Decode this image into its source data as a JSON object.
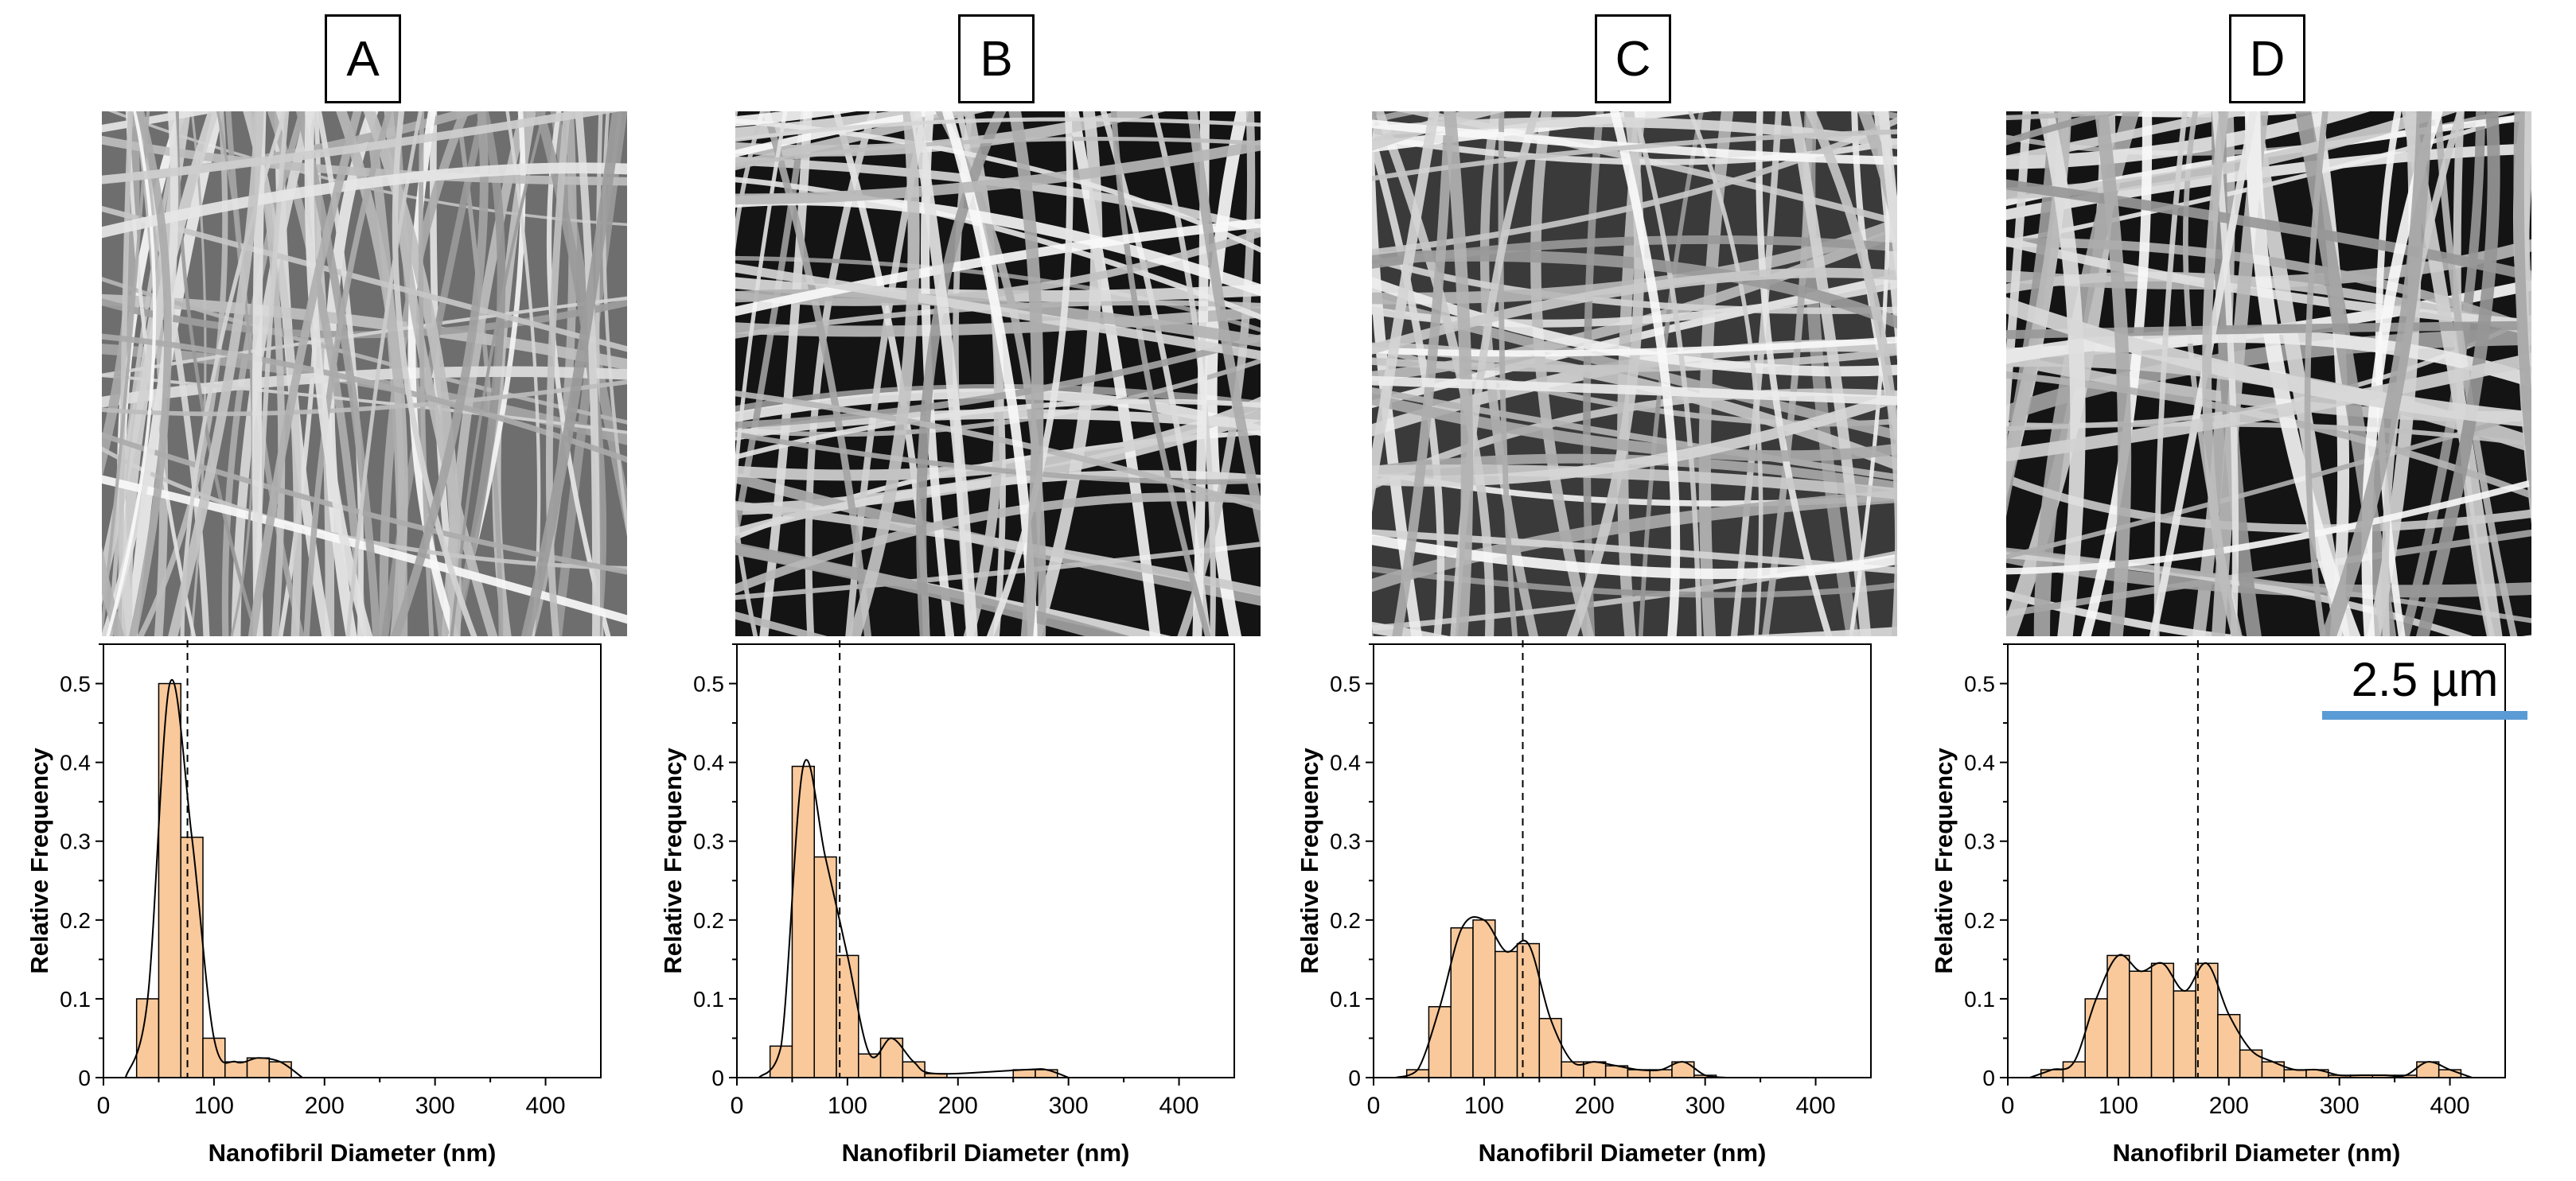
{
  "colors": {
    "bar_fill": "#f9c99b",
    "bar_stroke": "#000000",
    "curve": "#000000",
    "scale_bar": "#5b9bd5"
  },
  "scale_bar": {
    "label": "2.5 µm"
  },
  "chart_data": [
    {
      "type": "bar",
      "panel_label": "A",
      "xlabel": "Nanofibril Diameter (nm)",
      "ylabel": "Relative Frequency",
      "xlim": [
        0,
        450
      ],
      "ylim": [
        0,
        0.55
      ],
      "xticks": [
        0,
        100,
        200,
        300,
        400
      ],
      "yticks": [
        0,
        0.1,
        0.2,
        0.3,
        0.4,
        0.5
      ],
      "ytick_labels": [
        "0",
        "0.1",
        "0.2",
        "0.3",
        "0.4",
        "0.5"
      ],
      "bin_width": 20,
      "bin_centers": [
        40,
        60,
        80,
        100,
        120,
        140,
        160
      ],
      "values": [
        0.1,
        0.5,
        0.305,
        0.05,
        0.02,
        0.025,
        0.02
      ],
      "mean_line": 76,
      "fit_curve": true
    },
    {
      "type": "bar",
      "panel_label": "B",
      "xlabel": "Nanofibril Diameter (nm)",
      "ylabel": "Relative Frequency",
      "xlim": [
        0,
        450
      ],
      "ylim": [
        0,
        0.55
      ],
      "xticks": [
        0,
        100,
        200,
        300,
        400
      ],
      "yticks": [
        0,
        0.1,
        0.2,
        0.3,
        0.4,
        0.5
      ],
      "ytick_labels": [
        "0",
        "0.1",
        "0.2",
        "0.3",
        "0.4",
        "0.5"
      ],
      "bin_width": 20,
      "bin_centers": [
        40,
        60,
        80,
        100,
        120,
        140,
        160,
        180,
        260,
        280
      ],
      "values": [
        0.04,
        0.395,
        0.28,
        0.155,
        0.03,
        0.05,
        0.02,
        0.005,
        0.01,
        0.01
      ],
      "mean_line": 93,
      "fit_curve": true
    },
    {
      "type": "bar",
      "panel_label": "C",
      "xlabel": "Nanofibril Diameter (nm)",
      "ylabel": "Relative Frequency",
      "xlim": [
        0,
        450
      ],
      "ylim": [
        0,
        0.55
      ],
      "xticks": [
        0,
        100,
        200,
        300,
        400
      ],
      "yticks": [
        0,
        0.1,
        0.2,
        0.3,
        0.4,
        0.5
      ],
      "ytick_labels": [
        "0",
        "0.1",
        "0.2",
        "0.3",
        "0.4",
        "0.5"
      ],
      "bin_width": 20,
      "bin_centers": [
        40,
        60,
        80,
        100,
        120,
        140,
        160,
        180,
        200,
        220,
        240,
        260,
        280,
        300
      ],
      "values": [
        0.01,
        0.09,
        0.19,
        0.2,
        0.16,
        0.17,
        0.075,
        0.02,
        0.02,
        0.015,
        0.01,
        0.01,
        0.02,
        0.003
      ],
      "mean_line": 135,
      "fit_curve": true
    },
    {
      "type": "bar",
      "panel_label": "D",
      "xlabel": "Nanofibril Diameter (nm)",
      "ylabel": "Relative Frequency",
      "xlim": [
        0,
        450
      ],
      "ylim": [
        0,
        0.55
      ],
      "xticks": [
        0,
        100,
        200,
        300,
        400
      ],
      "yticks": [
        0,
        0.1,
        0.2,
        0.3,
        0.4,
        0.5
      ],
      "ytick_labels": [
        "0",
        "0.1",
        "0.2",
        "0.3",
        "0.4",
        "0.5"
      ],
      "bin_width": 20,
      "bin_centers": [
        40,
        60,
        80,
        100,
        120,
        140,
        160,
        180,
        200,
        220,
        240,
        260,
        280,
        300,
        320,
        340,
        360,
        380,
        400
      ],
      "values": [
        0.01,
        0.02,
        0.1,
        0.155,
        0.135,
        0.145,
        0.11,
        0.145,
        0.08,
        0.035,
        0.02,
        0.01,
        0.01,
        0.003,
        0.003,
        0.003,
        0.003,
        0.02,
        0.01
      ],
      "mean_line": 172,
      "fit_curve": true
    }
  ]
}
